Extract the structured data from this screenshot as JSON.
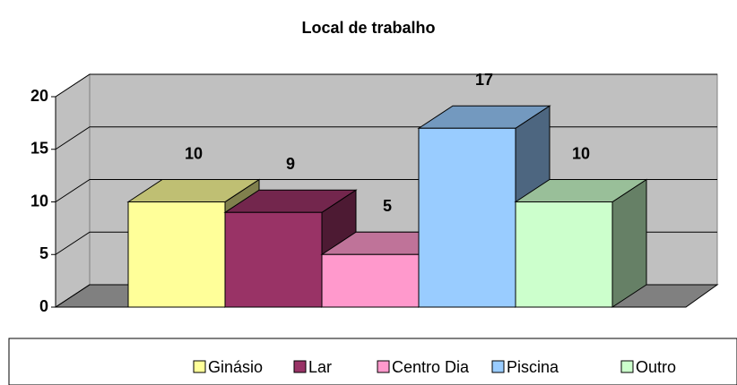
{
  "chart_data": {
    "type": "bar3d",
    "title": "Local de trabalho",
    "series": [
      {
        "name": "Ginásio",
        "color": "#ffff99",
        "values": [
          10
        ]
      },
      {
        "name": "Lar",
        "color": "#993366",
        "values": [
          9
        ]
      },
      {
        "name": "Centro Dia",
        "color": "#ff99cc",
        "values": [
          5
        ]
      },
      {
        "name": "Piscina",
        "color": "#99ccff",
        "values": [
          17
        ]
      },
      {
        "name": "Outro",
        "color": "#ccffcc",
        "values": [
          10
        ]
      }
    ],
    "ylim": [
      0,
      20
    ],
    "yticks": [
      0,
      5,
      10,
      15,
      20
    ],
    "grid": true,
    "legend": "bottom"
  }
}
